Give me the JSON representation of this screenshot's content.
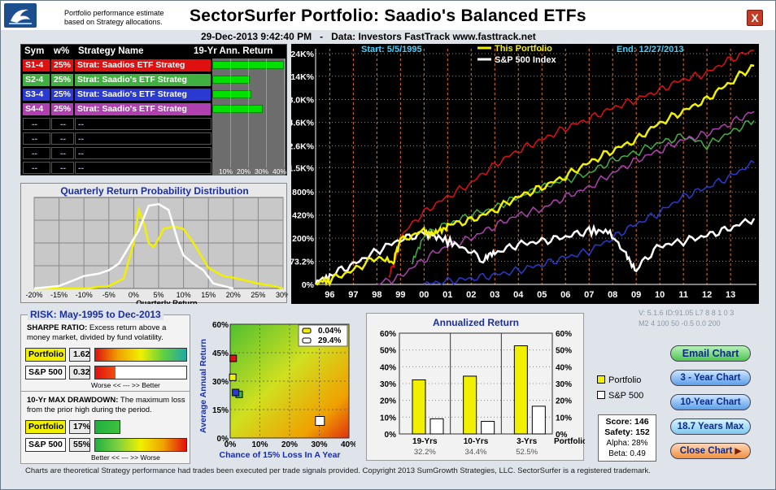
{
  "header": {
    "subtitle_line1": "Portfolio performance estimate",
    "subtitle_line2": "based on Strategy allocations.",
    "title": "SectorSurfer Portfolio:  Saadio's Balanced ETFs",
    "close_label": "X",
    "date": "29-Dec-2013   9:42:40 PM",
    "data_source": "Data: Investors FastTrack www.fasttrack.net"
  },
  "strategy_table": {
    "col_sym": "Sym",
    "col_weight": "w%",
    "col_name": "Strategy Name",
    "col_return": "19-Yr Ann. Return",
    "rows": [
      {
        "sym": "S1-4",
        "weight": "25%",
        "name": "Strat: Saadios ETF Strateg",
        "color": "#e01010",
        "text_color": "#ffffff",
        "return_pct": 40
      },
      {
        "sym": "S2-4",
        "weight": "25%",
        "name": "Strat: Saadio's ETF Strateg",
        "color": "#40b040",
        "text_color": "#ffffff",
        "return_pct": 21
      },
      {
        "sym": "S3-4",
        "weight": "25%",
        "name": "Strat: Saadio's ETF Strateg",
        "color": "#2a3ad0",
        "text_color": "#ffffff",
        "return_pct": 22
      },
      {
        "sym": "S4-4",
        "weight": "25%",
        "name": "Strat: Saadio's ETF Strateg",
        "color": "#b040b0",
        "text_color": "#ffffff",
        "return_pct": 28
      },
      {
        "sym": "--",
        "weight": "--",
        "name": "--",
        "color": "#000000",
        "text_color": "#8aa0ff",
        "return_pct": 0
      },
      {
        "sym": "--",
        "weight": "--",
        "name": "--",
        "color": "#000000",
        "text_color": "#8aa0ff",
        "return_pct": 0
      },
      {
        "sym": "--",
        "weight": "--",
        "name": "--",
        "color": "#000000",
        "text_color": "#8aa0ff",
        "return_pct": 0
      },
      {
        "sym": "--",
        "weight": "--",
        "name": "--",
        "color": "#000000",
        "text_color": "#8aa0ff",
        "return_pct": 0
      }
    ],
    "ticks": [
      "10%",
      "20%",
      "30%",
      "40%"
    ]
  },
  "chart_data": [
    {
      "type": "line",
      "title": "Quarterly Return Probability Distribution",
      "xlabel": "Quarterly Return",
      "x_ticks": [
        "-20%",
        "-15%",
        "-10%",
        "-5%",
        "0%",
        "5%",
        "10%",
        "15%",
        "20%",
        "25%",
        "30%"
      ],
      "xlim": [
        -20,
        30
      ],
      "series": [
        {
          "name": "This Portfolio",
          "color": "#f0f000",
          "x": [
            -20,
            -10,
            -5,
            -2,
            0,
            1,
            2,
            3,
            4,
            5,
            6,
            8,
            10,
            12,
            15,
            18,
            20,
            25,
            28,
            30
          ],
          "y": [
            0,
            0,
            3,
            12,
            55,
            95,
            80,
            55,
            50,
            60,
            72,
            75,
            72,
            55,
            25,
            15,
            13,
            6,
            3,
            0
          ]
        },
        {
          "name": "S&P 500",
          "color": "#ffffff",
          "x": [
            -20,
            -15,
            -12,
            -10,
            -7,
            -5,
            -3,
            -1,
            1,
            3,
            5,
            7,
            8,
            9,
            10,
            12,
            14,
            16,
            20
          ],
          "y": [
            0,
            3,
            10,
            15,
            18,
            22,
            30,
            50,
            70,
            100,
            102,
            95,
            75,
            55,
            40,
            30,
            22,
            6,
            0
          ]
        }
      ]
    },
    {
      "type": "line",
      "title": "",
      "y_ticks": [
        "24K%",
        "14K%",
        "8.0K%",
        "4.6K%",
        "2.6K%",
        "1.5K%",
        "800%",
        "420%",
        "200%",
        "73.2%",
        "0%"
      ],
      "x_ticks": [
        "96",
        "97",
        "98",
        "99",
        "00",
        "01",
        "02",
        "03",
        "04",
        "05",
        "06",
        "07",
        "08",
        "09",
        "10",
        "11",
        "12",
        "13"
      ],
      "start_label": "Start: 5/5/1995",
      "end_label": "End: 12/27/2013",
      "series": [
        {
          "name": "This Portfolio",
          "color": "#f0f000",
          "x": [
            1995.4,
            1996,
            1997,
            1998,
            1998.7,
            1999,
            2000,
            2000.5,
            2001,
            2002,
            2003,
            2004,
            2005,
            2006,
            2007,
            2008,
            2009,
            2010,
            2011,
            2012,
            2013,
            2014
          ],
          "y": [
            0,
            10,
            40,
            90,
            70,
            180,
            260,
            230,
            310,
            360,
            480,
            700,
            900,
            1200,
            1700,
            2300,
            3000,
            4500,
            6000,
            8000,
            12000,
            18000
          ]
        },
        {
          "name": "S&P 500",
          "color": "#ffffff",
          "x": [
            1995.4,
            1996,
            1997,
            1998,
            1999,
            2000,
            2000.7,
            2001.5,
            2002.5,
            2003,
            2004,
            2005,
            2006,
            2007,
            2007.8,
            2008.5,
            2009,
            2010,
            2011,
            2012,
            2013,
            2014
          ],
          "y": [
            0,
            25,
            60,
            120,
            190,
            240,
            200,
            150,
            80,
            110,
            160,
            180,
            210,
            260,
            250,
            110,
            40,
            150,
            180,
            220,
            280,
            380
          ]
        },
        {
          "name": "S1-4",
          "color": "#e01010",
          "x": [
            1998.5,
            1998.8,
            1999,
            2000,
            2001,
            2002,
            2003,
            2004,
            2005,
            2006,
            2007,
            2008,
            2009,
            2010,
            2011,
            2012,
            2013,
            2014
          ],
          "y": [
            20,
            80,
            200,
            450,
            700,
            1000,
            1600,
            2300,
            3000,
            4000,
            5000,
            6500,
            8000,
            10000,
            13000,
            15000,
            21000,
            26000
          ]
        },
        {
          "name": "S2-4",
          "color": "#40b040",
          "x": [
            1999.5,
            2000,
            2001,
            2002,
            2003,
            2004,
            2005,
            2006,
            2007,
            2008,
            2009,
            2010,
            2011,
            2012,
            2013,
            2014
          ],
          "y": [
            60,
            220,
            320,
            420,
            520,
            700,
            900,
            1100,
            1300,
            1800,
            2200,
            2800,
            3300,
            2600,
            3600,
            4800
          ]
        },
        {
          "name": "S3-4",
          "color": "#2a3ad0",
          "x": [
            2000,
            2001,
            2002,
            2003,
            2004,
            2005,
            2006,
            2007,
            2008,
            2009,
            2010,
            2011,
            2012,
            2013,
            2014
          ],
          "y": [
            0,
            8,
            15,
            25,
            40,
            60,
            90,
            120,
            200,
            320,
            450,
            700,
            900,
            1200,
            1700
          ]
        },
        {
          "name": "S4-4",
          "color": "#b040b0",
          "x": [
            1998,
            1999,
            2000,
            2001,
            2002,
            2003,
            2004,
            2005,
            2006,
            2007,
            2008,
            2009,
            2010,
            2011,
            2012,
            2013,
            2014
          ],
          "y": [
            0,
            20,
            80,
            150,
            200,
            300,
            420,
            500,
            700,
            900,
            1300,
            1800,
            2300,
            3000,
            3500,
            4500,
            6000
          ]
        }
      ]
    },
    {
      "type": "scatter",
      "xlabel": "Chance of 15% Loss In A Year",
      "ylabel": "Average Annual Return",
      "x_ticks": [
        "0%",
        "10%",
        "20%",
        "30%",
        "40%"
      ],
      "y_ticks": [
        "60%",
        "45%",
        "30%",
        "15%",
        "0%"
      ],
      "xlim": [
        0,
        40
      ],
      "ylim": [
        0,
        60
      ],
      "legend": [
        {
          "label": "0.04%",
          "color": "#f0f000"
        },
        {
          "label": "29.4%",
          "color": "#ffffff"
        }
      ],
      "points": [
        {
          "name": "S1-4",
          "x": 0.2,
          "y": 42,
          "color": "#e01010"
        },
        {
          "name": "S2-4",
          "x": 2.2,
          "y": 23,
          "color": "#40b040"
        },
        {
          "name": "S3-4",
          "x": 1.0,
          "y": 24,
          "color": "#2a3ad0"
        },
        {
          "name": "This Portfolio",
          "x": 0.04,
          "y": 32,
          "color": "#f0f000"
        },
        {
          "name": "S&P 500",
          "x": 29.4,
          "y": 9,
          "color": "#ffffff"
        }
      ]
    },
    {
      "type": "bar",
      "title": "Annualized Return",
      "categories": [
        "19-Yrs",
        "10-Yrs",
        "3-Yrs"
      ],
      "category_values": [
        "32.2%",
        "34.4%",
        "52.5%"
      ],
      "last_label": "Portfolio",
      "y_ticks": [
        "60%",
        "50%",
        "40%",
        "30%",
        "20%",
        "10%",
        "0%"
      ],
      "ylim": [
        0,
        60
      ],
      "series": [
        {
          "name": "Portfolio",
          "color": "#f0f000",
          "values": [
            32.2,
            34.4,
            52.5
          ]
        },
        {
          "name": "S&P 500",
          "color": "#ffffff",
          "values": [
            9,
            7.5,
            16.5
          ]
        }
      ]
    }
  ],
  "main_legend": {
    "portfolio": "This Portfolio",
    "sp500": "S&P 500 Index"
  },
  "version": {
    "line1": "V: 5.1.6  ID:91.05 L7 8 8 1 0 3",
    "line2": "M2 4 100 50 -0.5 0.0 200"
  },
  "risk": {
    "title": "RISK: May-1995  to  Dec-2013",
    "sharpe_heading": "SHARPE RATIO:",
    "sharpe_text": "Excess return above a money market, divided by fund volatility.",
    "portfolio_label": "Portfolio",
    "sp500_label": "S&P 500",
    "sharpe_portfolio": "1.62",
    "sharpe_sp500": "0.32",
    "sharpe_scale": "Worse  <<  ---  >>  Better",
    "drawdown_heading": "10-Yr MAX DRAWDOWN:",
    "drawdown_text": "The maximum loss from the prior high during the period.",
    "drawdown_portfolio": "17%",
    "drawdown_sp500": "55%",
    "drawdown_scale": "Better  <<  ---  >>  Worse",
    "sharpe_fill_portfolio": 1.0,
    "sharpe_fill_sp500": 0.22,
    "drawdown_fill_portfolio": 0.28,
    "drawdown_fill_sp500": 1.0
  },
  "legend": {
    "portfolio": "Portfolio",
    "sp500": "S&P 500"
  },
  "score": {
    "score": "Score: 146",
    "safety": "Safety: 152",
    "alpha": "Alpha: 28%",
    "beta": "Beta: 0.49"
  },
  "buttons": {
    "email": "Email Chart",
    "three_year": "3 - Year Chart",
    "ten_year": "10-Year Chart",
    "max": "18.7 Years Max",
    "close": "Close Chart"
  },
  "footer": "Charts are theoretical Strategy performance had trades been executed per trade signals provided.  Copyright 2013 SumGrowth Strategies, LLC.  SectorSurfer is a registered trademark."
}
